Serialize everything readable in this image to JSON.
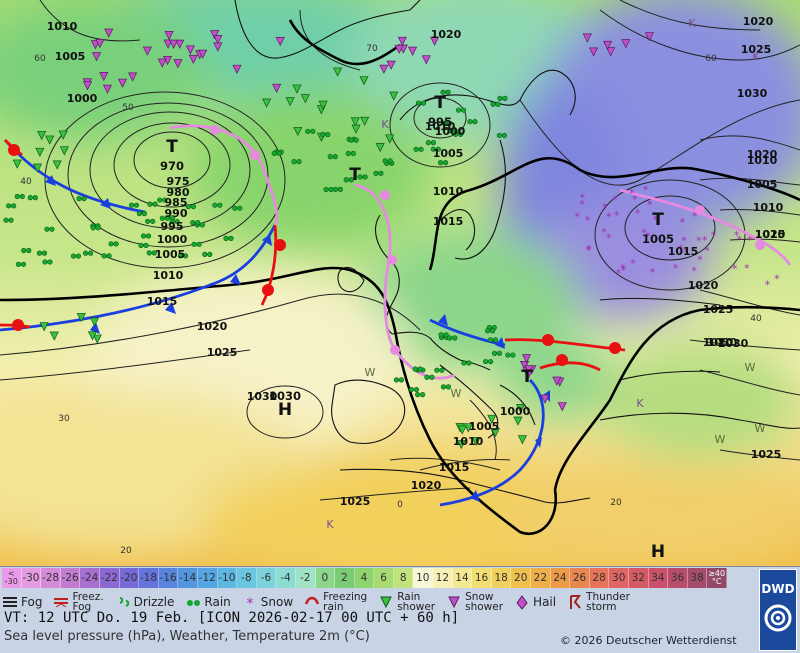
{
  "map": {
    "pressure_centers": [
      {
        "type": "L",
        "label": "T",
        "value": "970"
      },
      {
        "type": "L",
        "label": "T",
        "value": "995"
      },
      {
        "type": "L",
        "label": "T",
        "value": ""
      },
      {
        "type": "L",
        "label": "T",
        "value": "1005"
      },
      {
        "type": "L",
        "label": "T",
        "value": ""
      },
      {
        "type": "H",
        "label": "H",
        "value": "1030"
      },
      {
        "type": "H",
        "label": "H",
        "value": ""
      }
    ],
    "isobar_labels": [
      "1010",
      "1005",
      "1000",
      "975",
      "980",
      "985",
      "990",
      "995",
      "1000",
      "1005",
      "1010",
      "1015",
      "1020",
      "1025",
      "1030",
      "1020",
      "1000",
      "1005",
      "1010",
      "1015",
      "1020",
      "1025",
      "1030",
      "1010",
      "1005",
      "1010",
      "1015",
      "1020",
      "1025",
      "1030",
      "1020",
      "1025",
      "1030",
      "1020",
      "1015",
      "1020",
      "1010",
      "1000",
      "1005",
      "1010",
      "1015",
      "1020",
      "1025"
    ],
    "temperature_labels": [
      "60",
      "50",
      "40",
      "30",
      "20",
      "60",
      "70",
      "40",
      "20",
      "0"
    ],
    "weather_letters": {
      "snow": "K",
      "wind": "W"
    }
  },
  "legend": {
    "scale_first": [
      "<",
      "-30"
    ],
    "scale_last": [
      "≥40",
      "°C"
    ],
    "scale_values": [
      "-30",
      "-28",
      "-26",
      "-24",
      "-22",
      "-20",
      "-18",
      "-16",
      "-14",
      "-12",
      "-10",
      "-8",
      "-6",
      "-4",
      "-2",
      "0",
      "2",
      "4",
      "6",
      "8",
      "10",
      "12",
      "14",
      "16",
      "18",
      "20",
      "22",
      "24",
      "26",
      "28",
      "30",
      "32",
      "34",
      "36",
      "38"
    ],
    "scale_colors": [
      "#e59be2",
      "#d68bd8",
      "#c17ccf",
      "#a66fd0",
      "#8b68d3",
      "#756ad8",
      "#6474dc",
      "#5884de",
      "#5395df",
      "#53a6df",
      "#5cb8e0",
      "#6ac7df",
      "#7bd2da",
      "#8cdcd2",
      "#9fe3c4",
      "#8bd68a",
      "#79cc74",
      "#8fd46c",
      "#a8dc72",
      "#c2e27c",
      "#f8f7d6",
      "#f7f1b7",
      "#f5e892",
      "#f3de72",
      "#f2d05c",
      "#f0c04e",
      "#eeae48",
      "#ec9a48",
      "#ea8650",
      "#e6745a",
      "#e06462",
      "#d65a66",
      "#c9526a",
      "#b84e6c",
      "#a54c6c"
    ],
    "symbols": [
      {
        "icon": "fog-icon",
        "label": "Fog"
      },
      {
        "icon": "freezing-fog-icon",
        "label": "Freez.",
        "label2": "Fog"
      },
      {
        "icon": "drizzle-icon",
        "label": "Drizzle"
      },
      {
        "icon": "rain-icon",
        "label": "Rain"
      },
      {
        "icon": "snow-icon",
        "label": "Snow"
      },
      {
        "icon": "freezing-rain-icon",
        "label": "Freezing",
        "label2": "rain"
      },
      {
        "icon": "rain-shower-icon",
        "label": "Rain",
        "label2": "shower"
      },
      {
        "icon": "snow-shower-icon",
        "label": "Snow",
        "label2": "shower"
      },
      {
        "icon": "hail-icon",
        "label": "Hail"
      },
      {
        "icon": "thunderstorm-icon",
        "label": "Thunder",
        "label2": "storm"
      }
    ],
    "valid_time": "VT: 12 UTC Do.  19 Feb. [ICON 2026-02-17  00 UTC + 60 h]",
    "description": "Sea level pressure (hPa), Weather, Temperature 2m (°C)",
    "copyright": "© 2026 Deutscher Wetterdienst",
    "logo_text": "DWD"
  }
}
